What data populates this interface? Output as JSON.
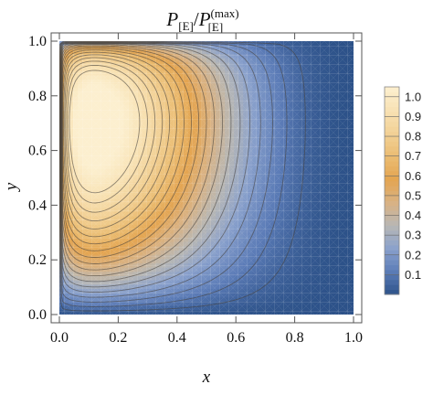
{
  "chart_data": {
    "type": "heatmap",
    "title": {
      "italic_1": "P",
      "sub_1": "[E]",
      "slash": "/",
      "italic_2": "P",
      "sup_2": "(max)",
      "sub_2": "[E]"
    },
    "xlabel": "x",
    "ylabel": "y",
    "xlim": [
      0,
      1
    ],
    "ylim": [
      0,
      1
    ],
    "x_ticks": [
      "0.0",
      "0.2",
      "0.4",
      "0.6",
      "0.8",
      "1.0"
    ],
    "y_ticks": [
      "0.0",
      "0.2",
      "0.4",
      "0.6",
      "0.8",
      "1.0"
    ],
    "x_tick_values": [
      0,
      0.2,
      0.4,
      0.6,
      0.8,
      1.0
    ],
    "y_tick_values": [
      0,
      0.2,
      0.4,
      0.6,
      0.8,
      1.0
    ],
    "colorbar": {
      "range": [
        0,
        1.05
      ],
      "labels": [
        "1.0",
        "0.9",
        "0.8",
        "0.7",
        "0.6",
        "0.5",
        "0.4",
        "0.3",
        "0.2",
        "0.1"
      ],
      "label_values": [
        1.0,
        0.9,
        0.8,
        0.7,
        0.6,
        0.5,
        0.4,
        0.3,
        0.2,
        0.1
      ],
      "colors": [
        "#2d5289",
        "#5c7cb7",
        "#8aa1cc",
        "#b8b7b4",
        "#d9b283",
        "#e4a551",
        "#ebbd73",
        "#f2d196",
        "#f8e2b4",
        "#fcefcf"
      ]
    },
    "contour_step": 0.05,
    "maximum": {
      "x": 0.12,
      "y": 0.87,
      "value": 1.0
    },
    "grid": false,
    "legend_position": "right"
  }
}
